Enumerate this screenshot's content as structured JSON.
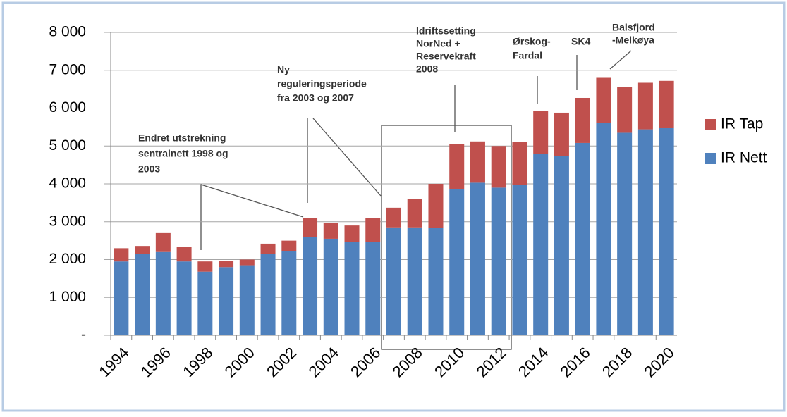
{
  "chart_data": {
    "type": "stacked_bar",
    "categories": [
      "1994",
      null,
      "1996",
      null,
      "1998",
      null,
      "2000",
      null,
      "2002",
      null,
      "2004",
      null,
      "2006",
      null,
      "2008",
      null,
      "2010",
      null,
      "2012",
      null,
      "2014",
      null,
      "2016",
      null,
      "2018",
      null,
      "2020"
    ],
    "series": [
      {
        "name": "IR Nett",
        "color": "#4f81bd",
        "values": [
          1950,
          2150,
          2200,
          1950,
          1680,
          1800,
          1850,
          2150,
          2220,
          2600,
          2550,
          2470,
          2460,
          2850,
          2850,
          2830,
          3870,
          4030,
          3900,
          3980,
          4800,
          4730,
          5080,
          5610,
          5350,
          5440,
          5470
        ]
      },
      {
        "name": "IR Tap",
        "color": "#c0504d",
        "values": [
          350,
          210,
          500,
          380,
          270,
          170,
          150,
          270,
          280,
          500,
          420,
          430,
          640,
          520,
          750,
          1170,
          1180,
          1090,
          1100,
          1120,
          1120,
          1150,
          1190,
          1190,
          1210,
          1230,
          1250
        ]
      }
    ],
    "ylim": [
      0,
      8000
    ],
    "yticks": [
      {
        "value": 0,
        "label": "-"
      },
      {
        "value": 1000,
        "label": "1 000"
      },
      {
        "value": 2000,
        "label": "2 000"
      },
      {
        "value": 3000,
        "label": "3 000"
      },
      {
        "value": 4000,
        "label": "4 000"
      },
      {
        "value": 5000,
        "label": "5 000"
      },
      {
        "value": 6000,
        "label": "6 000"
      },
      {
        "value": 7000,
        "label": "7 000"
      },
      {
        "value": 8000,
        "label": "8 000"
      }
    ],
    "grid": true,
    "legend": "right",
    "annotations": [
      {
        "lines": [
          "Endret utstrekning",
          "sentralnett 1998 og",
          "2003"
        ]
      },
      {
        "lines": [
          "Ny",
          "reguleringsperiode",
          "fra 2003 og 2007"
        ]
      },
      {
        "lines": [
          "Idriftssetting",
          "NorNed +",
          "Reservekraft",
          "2008"
        ]
      },
      {
        "lines": [
          "Ørskog-",
          "Fardal"
        ]
      },
      {
        "lines": [
          "SK4"
        ]
      },
      {
        "lines": [
          "Balsfjord",
          "-Melkøya"
        ]
      }
    ]
  }
}
